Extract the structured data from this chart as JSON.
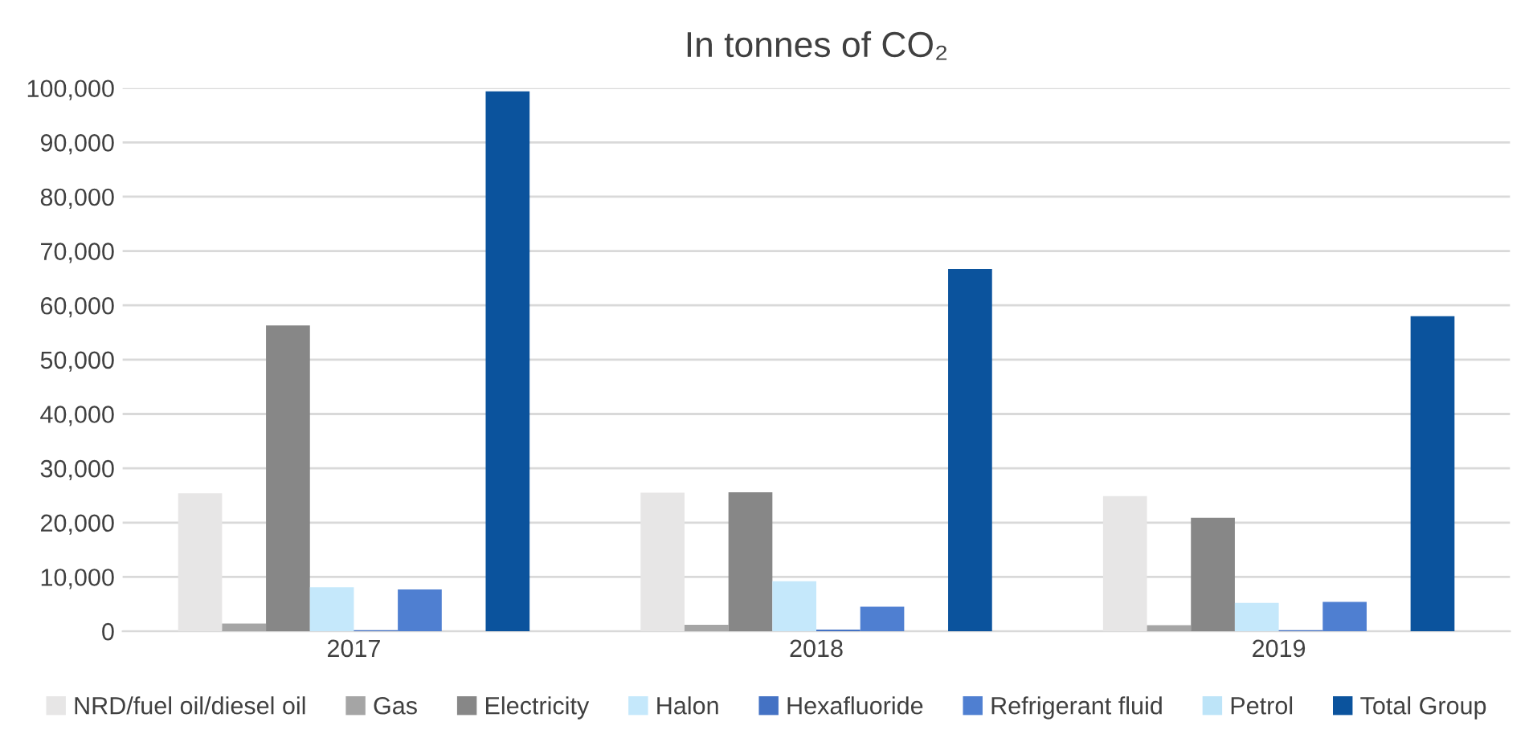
{
  "chart_data": {
    "type": "bar",
    "title": "In tonnes of CO₂",
    "categories": [
      "2017",
      "2018",
      "2019"
    ],
    "series": [
      {
        "name": "NRD/fuel oil/diesel oil",
        "color": "#e7e6e6",
        "values": [
          25400,
          25500,
          24900
        ]
      },
      {
        "name": "Gas",
        "color": "#a5a5a5",
        "values": [
          1400,
          1200,
          1100
        ]
      },
      {
        "name": "Electricity",
        "color": "#878787",
        "values": [
          56300,
          25600,
          20900
        ]
      },
      {
        "name": "Halon",
        "color": "#c5e8fb",
        "values": [
          8100,
          9200,
          5200
        ]
      },
      {
        "name": "Hexafluoride",
        "color": "#4472c4",
        "values": [
          200,
          300,
          200
        ]
      },
      {
        "name": "Refrigerant fluid",
        "color": "#4f7fd1",
        "values": [
          7700,
          4500,
          5400
        ]
      },
      {
        "name": "Petrol",
        "color": "#bde4f8",
        "values": [
          0,
          0,
          0
        ]
      },
      {
        "name": "Total Group",
        "color": "#0b539d",
        "values": [
          99400,
          66700,
          58000
        ]
      }
    ],
    "ylim": [
      0,
      100000
    ],
    "yticks": [
      {
        "value": 0,
        "label": "0"
      },
      {
        "value": 10000,
        "label": "10,000"
      },
      {
        "value": 20000,
        "label": "20,000"
      },
      {
        "value": 30000,
        "label": "30,000"
      },
      {
        "value": 40000,
        "label": "40,000"
      },
      {
        "value": 50000,
        "label": "50,000"
      },
      {
        "value": 60000,
        "label": "60,000"
      },
      {
        "value": 70000,
        "label": "70,000"
      },
      {
        "value": 80000,
        "label": "80,000"
      },
      {
        "value": 90000,
        "label": "90,000"
      },
      {
        "value": 100000,
        "label": "100,000"
      }
    ],
    "grid": "y",
    "legend": "bottom"
  }
}
